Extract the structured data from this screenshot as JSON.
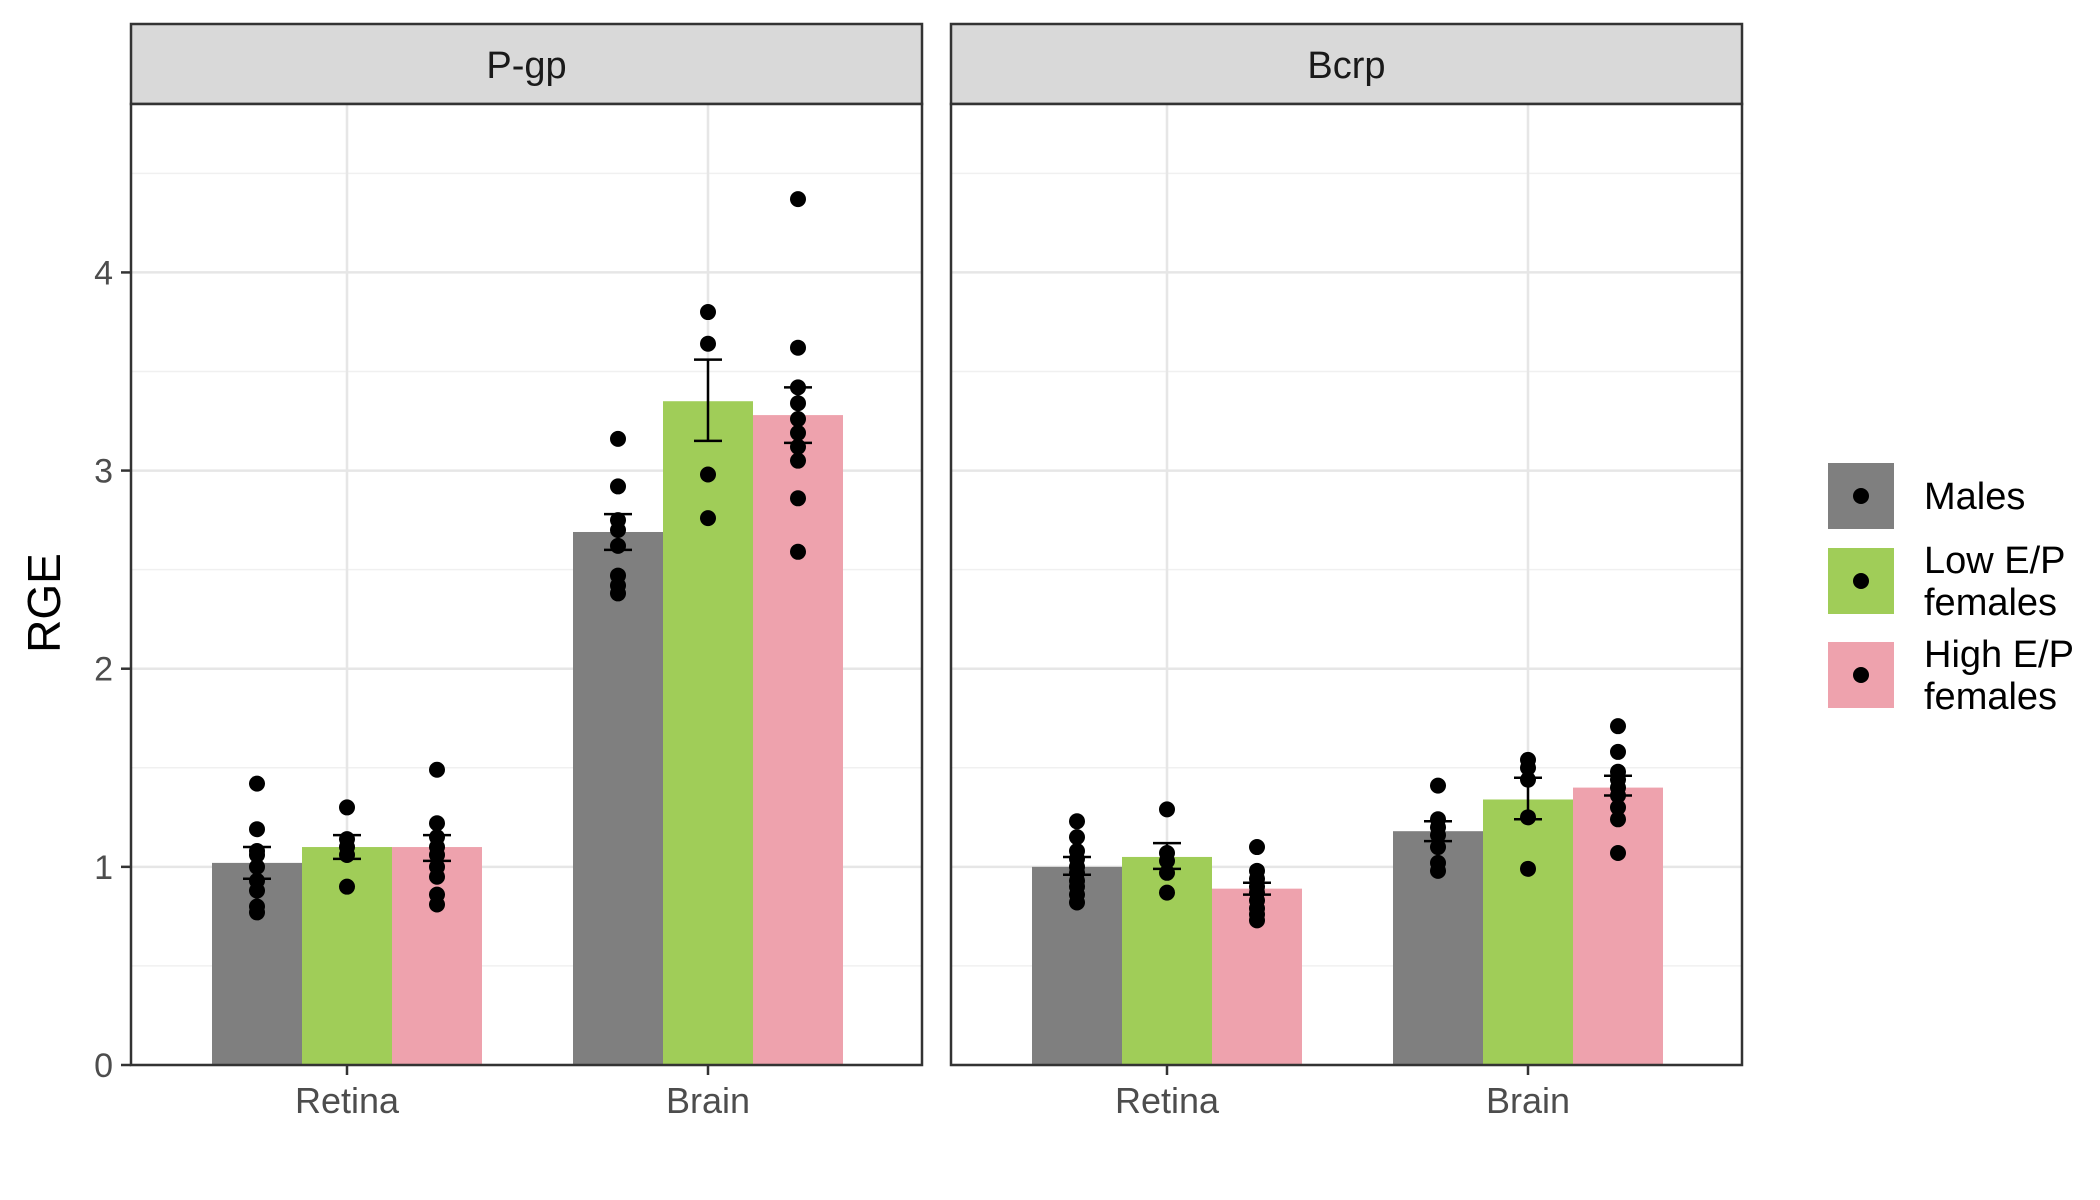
{
  "chart_data": {
    "type": "bar",
    "ylabel": "RGE",
    "ylim": [
      0,
      4.85
    ],
    "yticks": [
      0,
      1,
      2,
      3,
      4
    ],
    "grid": true,
    "legend_position": "right",
    "categories": [
      "Retina",
      "Brain"
    ],
    "series": [
      {
        "name": "Males",
        "color": "#7f7f7f",
        "legend_lines": [
          "Males"
        ]
      },
      {
        "name": "Low E/P females",
        "color": "#a0cd58",
        "legend_lines": [
          "Low E/P",
          "females"
        ]
      },
      {
        "name": "High E/P females",
        "color": "#eea2ad",
        "legend_lines": [
          "High E/P",
          "females"
        ]
      }
    ],
    "panels": [
      {
        "title": "P-gp",
        "groups": [
          {
            "category": "Retina",
            "bars": [
              {
                "mean": 1.02,
                "err_low": 0.94,
                "err_high": 1.1,
                "points": [
                  0.77,
                  0.8,
                  0.88,
                  0.93,
                  1.0,
                  1.06,
                  1.08,
                  1.19,
                  1.42
                ]
              },
              {
                "mean": 1.1,
                "err_low": 1.04,
                "err_high": 1.16,
                "points": [
                  0.9,
                  1.06,
                  1.1,
                  1.14,
                  1.3
                ]
              },
              {
                "mean": 1.1,
                "err_low": 1.03,
                "err_high": 1.16,
                "points": [
                  0.81,
                  0.86,
                  0.95,
                  1.0,
                  1.06,
                  1.1,
                  1.15,
                  1.22,
                  1.49
                ]
              }
            ]
          },
          {
            "category": "Brain",
            "bars": [
              {
                "mean": 2.69,
                "err_low": 2.6,
                "err_high": 2.78,
                "points": [
                  2.38,
                  2.42,
                  2.47,
                  2.62,
                  2.7,
                  2.75,
                  2.92,
                  3.16
                ]
              },
              {
                "mean": 3.35,
                "err_low": 3.15,
                "err_high": 3.56,
                "points": [
                  2.76,
                  2.98,
                  3.64,
                  3.8
                ]
              },
              {
                "mean": 3.28,
                "err_low": 3.14,
                "err_high": 3.42,
                "points": [
                  2.59,
                  2.86,
                  3.05,
                  3.12,
                  3.19,
                  3.26,
                  3.34,
                  3.42,
                  3.62,
                  4.37
                ]
              }
            ]
          }
        ]
      },
      {
        "title": "Bcrp",
        "groups": [
          {
            "category": "Retina",
            "bars": [
              {
                "mean": 1.0,
                "err_low": 0.96,
                "err_high": 1.05,
                "points": [
                  0.82,
                  0.86,
                  0.9,
                  0.93,
                  0.97,
                  1.0,
                  1.04,
                  1.08,
                  1.15,
                  1.23
                ]
              },
              {
                "mean": 1.05,
                "err_low": 0.99,
                "err_high": 1.12,
                "points": [
                  0.87,
                  0.97,
                  1.03,
                  1.07,
                  1.29
                ]
              },
              {
                "mean": 0.89,
                "err_low": 0.86,
                "err_high": 0.92,
                "points": [
                  0.73,
                  0.76,
                  0.79,
                  0.83,
                  0.87,
                  0.9,
                  0.94,
                  0.98,
                  1.1
                ]
              }
            ]
          },
          {
            "category": "Brain",
            "bars": [
              {
                "mean": 1.18,
                "err_low": 1.13,
                "err_high": 1.23,
                "points": [
                  0.98,
                  1.02,
                  1.1,
                  1.16,
                  1.2,
                  1.24,
                  1.41
                ]
              },
              {
                "mean": 1.34,
                "err_low": 1.24,
                "err_high": 1.45,
                "points": [
                  0.99,
                  1.25,
                  1.44,
                  1.5,
                  1.54
                ]
              },
              {
                "mean": 1.4,
                "err_low": 1.36,
                "err_high": 1.46,
                "points": [
                  1.07,
                  1.24,
                  1.3,
                  1.36,
                  1.4,
                  1.44,
                  1.48,
                  1.58,
                  1.71
                ]
              }
            ]
          }
        ]
      }
    ]
  }
}
